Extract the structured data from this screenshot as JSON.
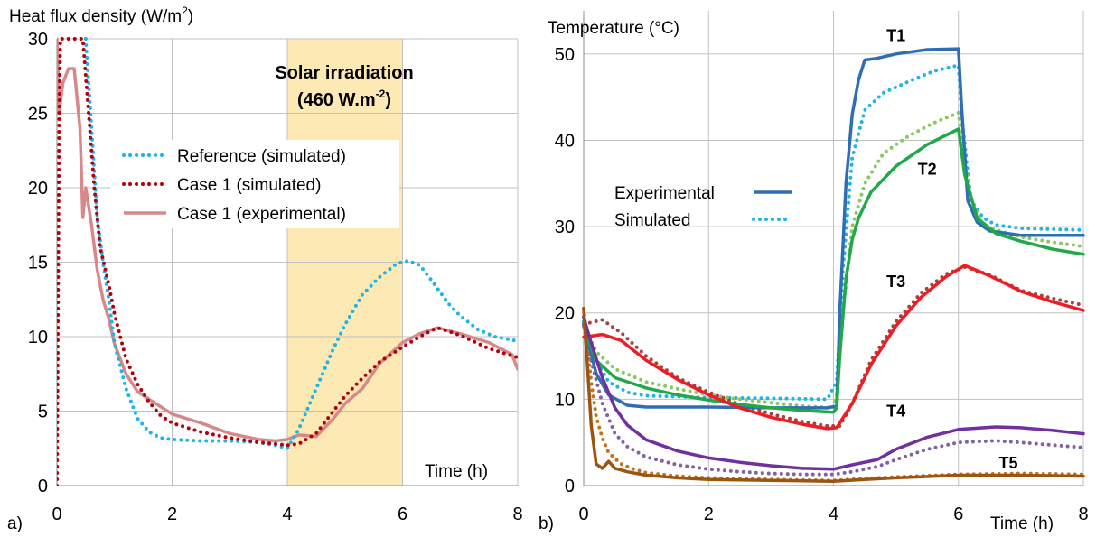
{
  "chart_data": [
    {
      "type": "line",
      "panel_label": "a)",
      "ylabel_main": "Heat flux density (W/m",
      "ylabel_sup": "2",
      "ylabel_end": ")",
      "xlabel": "Time (h)",
      "xlim": [
        0,
        8
      ],
      "ylim": [
        0,
        30
      ],
      "xticks": [
        "0",
        "2",
        "4",
        "6",
        "8"
      ],
      "yticks": [
        "0",
        "5",
        "10",
        "15",
        "20",
        "25",
        "30"
      ],
      "xtick_values": [
        0,
        2,
        4,
        6,
        8
      ],
      "ytick_values": [
        0,
        5,
        10,
        15,
        20,
        25,
        30
      ],
      "grid": true,
      "shaded_region": {
        "x_start": 4,
        "x_end": 6,
        "color": "#fde9b4"
      },
      "annotation_line1": "Solar irradiation",
      "annotation_line2_main": "(460 W.m",
      "annotation_line2_sup": "-2",
      "annotation_line2_end": ")",
      "annotation_color": "#e0001b",
      "legend_placement": "center",
      "series": [
        {
          "name": "Reference (simulated)",
          "color": "#1fb4e6",
          "style": "dotted",
          "x": [
            0.5,
            0.6,
            0.7,
            0.8,
            0.9,
            1.0,
            1.2,
            1.4,
            1.6,
            1.8,
            2.0,
            2.5,
            3.0,
            3.5,
            3.8,
            4.0,
            4.2,
            4.5,
            4.8,
            5.0,
            5.3,
            5.6,
            5.9,
            6.1,
            6.3,
            6.5,
            6.8,
            7.0,
            7.3,
            7.6,
            8.0
          ],
          "y": [
            30,
            24,
            18,
            15,
            12.5,
            9.5,
            6.5,
            4.5,
            3.6,
            3.2,
            3.1,
            3.0,
            3.0,
            2.9,
            2.7,
            2.5,
            3.8,
            6.5,
            9.2,
            10.8,
            12.8,
            14.0,
            14.9,
            15.1,
            14.8,
            13.8,
            12.2,
            11.4,
            10.5,
            10.0,
            9.7
          ]
        },
        {
          "name": "Case 1 (simulated)",
          "color": "#b3000d",
          "style": "dotted",
          "x": [
            0.0,
            0.01,
            0.04,
            0.06,
            0.45,
            0.55,
            0.65,
            0.75,
            0.9,
            1.0,
            1.2,
            1.4,
            1.6,
            1.8,
            2.0,
            2.5,
            3.0,
            3.5,
            3.8,
            4.0,
            4.2,
            4.5,
            4.8,
            5.0,
            5.3,
            5.6,
            6.0,
            6.3,
            6.6,
            7.0,
            7.5,
            8.0
          ],
          "y": [
            0,
            5,
            25,
            30,
            30,
            25,
            20,
            16,
            13.5,
            11.5,
            8.5,
            6.8,
            5.6,
            4.7,
            4.2,
            3.6,
            3.2,
            2.9,
            2.8,
            2.7,
            2.8,
            3.5,
            5.0,
            6.0,
            7.2,
            8.3,
            9.3,
            10.0,
            10.6,
            10.1,
            9.2,
            8.6
          ]
        },
        {
          "name": "Case 1 (experimental)",
          "color": "#d7898a",
          "style": "solid",
          "x": [
            0.0,
            0.02,
            0.04,
            0.1,
            0.2,
            0.3,
            0.4,
            0.45,
            0.5,
            0.6,
            0.7,
            0.8,
            0.9,
            1.0,
            1.2,
            1.4,
            1.6,
            1.8,
            2.0,
            2.5,
            3.0,
            3.5,
            3.8,
            4.0,
            4.2,
            4.5,
            4.8,
            5.0,
            5.3,
            5.6,
            6.0,
            6.3,
            6.6,
            7.0,
            7.5,
            7.9,
            8.0
          ],
          "y": [
            30,
            28,
            25,
            27,
            28,
            28,
            24,
            18,
            20,
            17.5,
            14.5,
            12.5,
            11.2,
            9.5,
            7.5,
            6.3,
            5.8,
            5.3,
            4.8,
            4.2,
            3.5,
            3.1,
            3.0,
            3.1,
            3.4,
            3.3,
            4.5,
            5.5,
            6.5,
            8.2,
            9.6,
            10.2,
            10.6,
            10.2,
            9.6,
            8.8,
            7.8
          ]
        }
      ]
    },
    {
      "type": "line",
      "panel_label": "b)",
      "ylabel": "Temperature (°C)",
      "xlabel": "Time (h)",
      "xlim": [
        0,
        8
      ],
      "ylim": [
        0,
        55
      ],
      "xticks": [
        "0",
        "2",
        "4",
        "6",
        "8"
      ],
      "yticks": [
        "0",
        "10",
        "20",
        "30",
        "40",
        "50"
      ],
      "xtick_values": [
        0,
        2,
        4,
        6,
        8
      ],
      "ytick_values": [
        0,
        10,
        20,
        30,
        40,
        50
      ],
      "grid": true,
      "legend": [
        {
          "label": "Experimental",
          "style": "solid",
          "color": "#2f6eb3"
        },
        {
          "label": "Simulated",
          "style": "dotted",
          "color": "#1fb4e6"
        }
      ],
      "series_labels": [
        {
          "text": "T1",
          "x": 5.0,
          "y": 51.5
        },
        {
          "text": "T2",
          "x": 5.5,
          "y": 36.0
        },
        {
          "text": "T3",
          "x": 5.0,
          "y": 23.0
        },
        {
          "text": "T4",
          "x": 5.0,
          "y": 8.0
        },
        {
          "text": "T5",
          "x": 6.8,
          "y": 2.0
        }
      ],
      "series": [
        {
          "name": "T1",
          "kind": "experimental",
          "color": "#2f6eb3",
          "style": "solid",
          "x": [
            0.0,
            0.2,
            0.4,
            0.7,
            1.0,
            2.0,
            3.0,
            3.9,
            4.05,
            4.1,
            4.2,
            4.3,
            4.4,
            4.5,
            4.7,
            5.0,
            5.5,
            6.0,
            6.05,
            6.15,
            6.3,
            6.5,
            7.0,
            8.0
          ],
          "y": [
            18.5,
            13,
            10.5,
            9.3,
            9.1,
            9.1,
            9.0,
            9.0,
            9.2,
            20,
            35,
            43,
            47,
            49.3,
            49.5,
            50.0,
            50.5,
            50.6,
            44,
            33,
            30.5,
            29.5,
            29.0,
            29.0
          ]
        },
        {
          "name": "T1",
          "kind": "simulated",
          "color": "#1fb4e6",
          "style": "dotted",
          "x": [
            0.0,
            0.2,
            0.4,
            0.7,
            1.0,
            2.0,
            3.0,
            3.9,
            4.05,
            4.15,
            4.3,
            4.5,
            4.8,
            5.2,
            5.6,
            6.0,
            6.05,
            6.2,
            6.4,
            6.6,
            7.0,
            8.0
          ],
          "y": [
            19,
            14.5,
            12,
            10.8,
            10.4,
            10.2,
            10.1,
            10.0,
            12,
            25,
            38,
            43.5,
            45.5,
            46.8,
            48,
            48.7,
            43,
            33,
            31,
            30.2,
            29.8,
            29.6
          ]
        },
        {
          "name": "T2",
          "kind": "experimental",
          "color": "#21a84a",
          "style": "solid",
          "x": [
            0.0,
            0.2,
            0.5,
            1.0,
            1.5,
            2.0,
            2.5,
            3.0,
            3.5,
            4.0,
            4.05,
            4.1,
            4.2,
            4.3,
            4.4,
            4.6,
            5.0,
            5.5,
            6.0,
            6.1,
            6.3,
            6.6,
            7.0,
            7.5,
            8.0
          ],
          "y": [
            18.5,
            14.5,
            12.5,
            11.3,
            10.5,
            9.9,
            9.4,
            9.0,
            8.7,
            8.5,
            9,
            15,
            24,
            28.5,
            31,
            34,
            37,
            39.5,
            41.3,
            36,
            31,
            29.2,
            28.3,
            27.4,
            26.8
          ]
        },
        {
          "name": "T2",
          "kind": "simulated",
          "color": "#86c95c",
          "style": "dotted",
          "x": [
            0.0,
            0.2,
            0.5,
            1.0,
            1.5,
            2.0,
            2.5,
            3.0,
            3.5,
            4.0,
            4.05,
            4.15,
            4.3,
            4.5,
            4.8,
            5.2,
            5.6,
            6.0,
            6.05,
            6.2,
            6.4,
            6.7,
            7.0,
            7.5,
            8.0
          ],
          "y": [
            18.5,
            15.5,
            13.5,
            12,
            11.2,
            10.5,
            10.0,
            9.6,
            9.2,
            9.0,
            10.5,
            20,
            30,
            35,
            38.5,
            40.5,
            42.0,
            43.2,
            40,
            33,
            30.2,
            29.4,
            28.8,
            28.2,
            27.7
          ]
        },
        {
          "name": "T3",
          "kind": "experimental",
          "color": "#ee1c25",
          "style": "solid",
          "x": [
            0.0,
            0.3,
            0.6,
            1.0,
            1.5,
            2.0,
            2.5,
            3.0,
            3.5,
            3.9,
            4.05,
            4.3,
            4.6,
            5.0,
            5.4,
            5.8,
            6.1,
            6.5,
            7.0,
            7.5,
            8.0
          ],
          "y": [
            17.2,
            17.5,
            16.8,
            14.5,
            12.3,
            10.5,
            9.0,
            7.9,
            7.1,
            6.6,
            6.7,
            9.5,
            14,
            18.5,
            21.8,
            24.2,
            25.5,
            24.3,
            22.5,
            21.3,
            20.3
          ]
        },
        {
          "name": "T3",
          "kind": "simulated",
          "color": "#a8423e",
          "style": "dotted",
          "x": [
            0.0,
            0.3,
            0.6,
            1.0,
            1.5,
            2.0,
            2.5,
            3.0,
            3.5,
            3.9,
            4.1,
            4.3,
            4.6,
            5.0,
            5.4,
            5.8,
            6.1,
            6.5,
            7.0,
            7.5,
            8.0
          ],
          "y": [
            18.7,
            19.2,
            17.7,
            15.0,
            12.5,
            10.8,
            9.4,
            8.3,
            7.4,
            6.9,
            6.9,
            9.5,
            14.5,
            19.0,
            22.3,
            24.5,
            25.3,
            24.4,
            22.6,
            21.7,
            20.9
          ]
        },
        {
          "name": "T4",
          "kind": "experimental",
          "color": "#7030a0",
          "style": "solid",
          "x": [
            0.0,
            0.1,
            0.3,
            0.5,
            0.7,
            1.0,
            1.5,
            2.0,
            2.5,
            3.0,
            3.5,
            4.0,
            4.3,
            4.7,
            5.0,
            5.5,
            6.0,
            6.6,
            7.0,
            7.5,
            8.0
          ],
          "y": [
            19.5,
            17,
            12.5,
            9,
            7,
            5.3,
            4.0,
            3.2,
            2.7,
            2.3,
            2.0,
            1.9,
            2.4,
            3.0,
            4.2,
            5.6,
            6.5,
            6.8,
            6.7,
            6.4,
            6.0
          ]
        },
        {
          "name": "T4",
          "kind": "simulated",
          "color": "#8064a2",
          "style": "dotted",
          "x": [
            0.0,
            0.1,
            0.3,
            0.5,
            0.7,
            1.0,
            1.5,
            2.0,
            2.5,
            3.0,
            3.5,
            4.0,
            4.3,
            4.7,
            5.0,
            5.5,
            6.0,
            6.6,
            7.0,
            7.5,
            8.0
          ],
          "y": [
            19.5,
            15,
            9.5,
            6,
            4.5,
            3.3,
            2.4,
            1.9,
            1.6,
            1.4,
            1.3,
            1.3,
            1.6,
            2.2,
            3.0,
            4.2,
            5.0,
            5.2,
            5.0,
            4.7,
            4.4
          ]
        },
        {
          "name": "T5",
          "kind": "experimental",
          "color": "#9c5511",
          "style": "solid",
          "x": [
            0.0,
            0.05,
            0.12,
            0.2,
            0.3,
            0.4,
            0.5,
            0.7,
            1.0,
            1.5,
            2.0,
            3.0,
            4.0,
            4.5,
            5.0,
            6.0,
            7.0,
            8.0
          ],
          "y": [
            20.5,
            15,
            7,
            2.5,
            2.0,
            2.8,
            2.0,
            1.6,
            1.2,
            0.9,
            0.7,
            0.6,
            0.5,
            0.7,
            0.9,
            1.2,
            1.2,
            1.1
          ]
        },
        {
          "name": "T5",
          "kind": "simulated",
          "color": "#c1721c",
          "style": "dotted",
          "x": [
            0.0,
            0.05,
            0.12,
            0.2,
            0.3,
            0.4,
            0.6,
            0.8,
            1.0,
            1.5,
            2.0,
            3.0,
            4.0,
            4.5,
            5.0,
            6.0,
            7.0,
            8.0
          ],
          "y": [
            20.5,
            17,
            12,
            8,
            5.5,
            3.8,
            2.5,
            1.9,
            1.5,
            1.1,
            0.9,
            0.7,
            0.6,
            0.8,
            1.0,
            1.3,
            1.4,
            1.3
          ]
        }
      ]
    }
  ]
}
